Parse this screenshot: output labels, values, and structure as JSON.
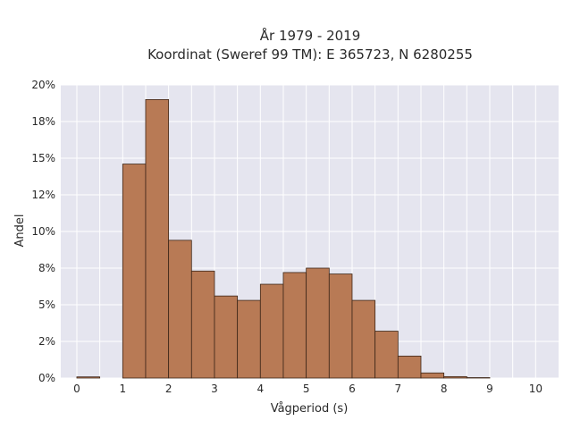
{
  "chart_data": {
    "type": "bar",
    "title_line1": "År 1979 - 2019",
    "title_line2": "Koordinat (Sweref 99 TM): E 365723, N 6280255",
    "xlabel": "Vågperiod (s)",
    "ylabel": "Andel",
    "bin_width": 0.5,
    "bins": [
      {
        "x0": 0.0,
        "value": 0.08
      },
      {
        "x0": 0.5,
        "value": 0
      },
      {
        "x0": 1.0,
        "value": 14.6
      },
      {
        "x0": 1.5,
        "value": 19.0
      },
      {
        "x0": 2.0,
        "value": 9.4
      },
      {
        "x0": 2.5,
        "value": 7.3
      },
      {
        "x0": 3.0,
        "value": 5.6
      },
      {
        "x0": 3.5,
        "value": 5.3
      },
      {
        "x0": 4.0,
        "value": 6.4
      },
      {
        "x0": 4.5,
        "value": 7.2
      },
      {
        "x0": 5.0,
        "value": 7.5
      },
      {
        "x0": 5.5,
        "value": 7.1
      },
      {
        "x0": 6.0,
        "value": 5.3
      },
      {
        "x0": 6.5,
        "value": 3.2
      },
      {
        "x0": 7.0,
        "value": 1.5
      },
      {
        "x0": 7.5,
        "value": 0.35
      },
      {
        "x0": 8.0,
        "value": 0.1
      },
      {
        "x0": 8.5,
        "value": 0.03
      }
    ],
    "xlim": [
      -0.35,
      10.5
    ],
    "ylim": [
      0,
      20
    ],
    "xticks": [
      "0",
      "1",
      "2",
      "3",
      "4",
      "5",
      "6",
      "7",
      "8",
      "9",
      "10"
    ],
    "yticks": [
      "0%",
      "2%",
      "5%",
      "8%",
      "10%",
      "12%",
      "15%",
      "18%",
      "20%"
    ],
    "ytick_values": [
      0,
      2.5,
      5,
      7.5,
      10,
      12.5,
      15,
      17.5,
      20
    ],
    "grid": true,
    "colors": {
      "bar_fill": "#b87a55",
      "bar_stroke": "#3d2618",
      "plot_bg": "#e5e5ef",
      "grid": "#ffffff"
    }
  }
}
